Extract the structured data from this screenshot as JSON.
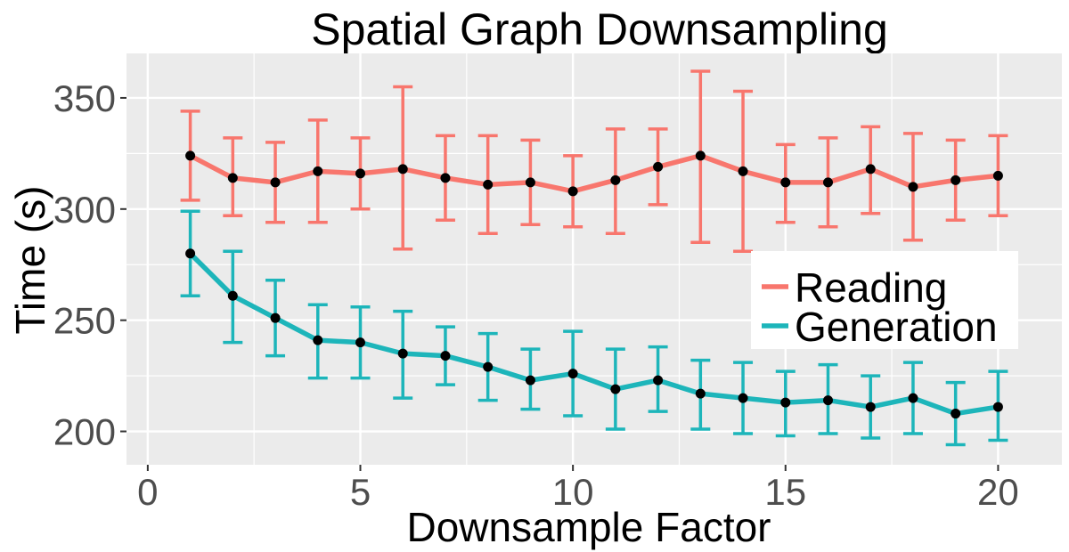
{
  "chart_data": {
    "type": "line",
    "title": "Spatial Graph Downsampling",
    "xlabel": "Downsample Factor",
    "ylabel": "Time (s)",
    "xlim": [
      -0.5,
      21.5
    ],
    "ylim": [
      185,
      370
    ],
    "xticks": [
      0,
      5,
      10,
      15,
      20
    ],
    "yticks": [
      200,
      250,
      300,
      350
    ],
    "grid": true,
    "legend": "right",
    "x": [
      1,
      2,
      3,
      4,
      5,
      6,
      7,
      8,
      9,
      10,
      11,
      12,
      13,
      14,
      15,
      16,
      17,
      18,
      19,
      20
    ],
    "series": [
      {
        "name": "Reading",
        "color": "#F8766D",
        "values": [
          324,
          314,
          312,
          317,
          316,
          318,
          314,
          311,
          312,
          308,
          313,
          319,
          324,
          317,
          312,
          312,
          318,
          310,
          313,
          315
        ],
        "lower": [
          304,
          297,
          294,
          294,
          300,
          282,
          295,
          289,
          293,
          292,
          289,
          302,
          285,
          281,
          294,
          292,
          298,
          286,
          295,
          297
        ],
        "upper": [
          344,
          332,
          330,
          340,
          332,
          355,
          333,
          333,
          331,
          324,
          336,
          336,
          362,
          353,
          329,
          332,
          337,
          334,
          331,
          333
        ]
      },
      {
        "name": "Generation",
        "color": "#1DB5BA",
        "values": [
          280,
          261,
          251,
          241,
          240,
          235,
          234,
          229,
          223,
          226,
          219,
          223,
          217,
          215,
          213,
          214,
          211,
          215,
          208,
          211
        ],
        "lower": [
          261,
          240,
          234,
          224,
          224,
          215,
          221,
          214,
          210,
          207,
          201,
          209,
          201,
          199,
          198,
          199,
          197,
          199,
          194,
          196
        ],
        "upper": [
          299,
          281,
          268,
          257,
          256,
          254,
          247,
          244,
          237,
          245,
          237,
          238,
          232,
          231,
          227,
          230,
          225,
          231,
          222,
          227
        ]
      }
    ]
  }
}
